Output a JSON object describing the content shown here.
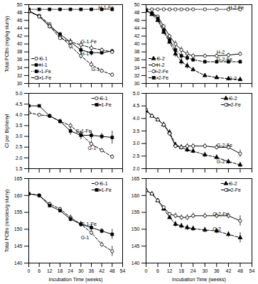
{
  "chart_data": [
    {
      "type": "line",
      "ylabel": "Total PCBs (mg/kg slurry)",
      "xlim": [
        0,
        54
      ],
      "xticks": [
        0,
        6,
        12,
        18,
        24,
        30,
        36,
        42,
        48,
        54
      ],
      "ylim": [
        30,
        50
      ],
      "yticks": [
        30,
        32,
        34,
        36,
        38,
        40,
        42,
        44,
        46,
        48,
        50
      ],
      "tick_labels": "y",
      "legend": "lower left",
      "x": [
        0,
        6,
        12,
        18,
        24,
        30,
        36,
        42,
        48
      ],
      "series": [
        {
          "name": "G-1",
          "values": [
            48.2,
            47.2,
            45.0,
            42.0,
            39.5,
            37.0,
            34.8,
            33.2,
            32.2
          ],
          "yerr": [
            0.3,
            0.3,
            0.5,
            0.5,
            0.8,
            0.8,
            0.8,
            0.5,
            0.5
          ],
          "marker": "open-circle",
          "line_style": "dashed"
        },
        {
          "name": "H-1",
          "values": [
            48.5,
            47.0,
            44.5,
            42.5,
            40.5,
            38.5,
            37.8,
            37.8,
            38.2
          ],
          "yerr": [
            0.3,
            0.3,
            0.5,
            0.5,
            0.8,
            0.8,
            0.8,
            0.5,
            0.5
          ],
          "marker": "filled-square",
          "line_style": "solid"
        },
        {
          "name": "H-1-Fe",
          "values": [
            48.8,
            48.8,
            48.8,
            48.8,
            48.8,
            48.8,
            48.8,
            48.8,
            48.8
          ],
          "yerr": [
            0.15,
            0.15,
            0.15,
            0.15,
            0.15,
            0.15,
            0.15,
            0.15,
            0.15
          ],
          "marker": "filled-square",
          "line_style": "dotted"
        },
        {
          "name": "G-1-Fe",
          "values": [
            48.3,
            47.0,
            44.5,
            41.5,
            40.5,
            39.8,
            39.0,
            38.5,
            38.0
          ],
          "yerr": [
            0.3,
            0.3,
            0.5,
            0.5,
            0.8,
            0.8,
            0.8,
            0.5,
            0.5
          ],
          "marker": "open-circle",
          "line_style": "dashed"
        }
      ],
      "annotations": [
        {
          "text": "H-1-Fe",
          "x": 40,
          "y": 49.2
        },
        {
          "text": "G-1-Fe",
          "x": 30,
          "y": 40.5
        },
        {
          "text": "H-1",
          "x": 30,
          "y": 37.5
        },
        {
          "text": "G-1",
          "x": 36,
          "y": 33.5
        }
      ]
    },
    {
      "type": "line",
      "xlim": [
        0,
        54
      ],
      "xticks": [
        0,
        6,
        12,
        18,
        24,
        30,
        36,
        42,
        48,
        54
      ],
      "ylim": [
        30,
        50
      ],
      "yticks": [
        30,
        32,
        34,
        36,
        38,
        40,
        42,
        44,
        46,
        48,
        50
      ],
      "tick_labels": "y",
      "legend": "lower left",
      "x": [
        0,
        3,
        6,
        9,
        12,
        15,
        18,
        21,
        24,
        30,
        36,
        42,
        48
      ],
      "series": [
        {
          "name": "G-2",
          "values": [
            48.5,
            47.5,
            46.0,
            43.0,
            40.5,
            37.5,
            35.5,
            34.5,
            33.5,
            32.0,
            31.5,
            31.2,
            31.0
          ],
          "yerr": [
            0.3,
            0.3,
            0.3,
            0.5,
            0.5,
            0.8,
            0.8,
            0.8,
            0.5,
            0.5,
            0.5,
            0.5,
            0.5
          ],
          "marker": "filled-triangle",
          "line_style": "dashed"
        },
        {
          "name": "H-2",
          "values": [
            48.5,
            47.8,
            47.0,
            44.5,
            42.0,
            40.0,
            38.5,
            37.5,
            37.0,
            37.0,
            37.0,
            37.2,
            37.5
          ],
          "yerr": [
            0.3,
            0.3,
            0.3,
            0.5,
            0.5,
            0.8,
            0.8,
            0.8,
            0.5,
            0.5,
            0.5,
            0.5,
            0.5
          ],
          "marker": "open-circle",
          "line_style": "solid"
        },
        {
          "name": "H-2-Fe",
          "values": [
            48.8,
            48.8,
            48.8,
            48.8,
            48.8,
            48.8,
            48.8,
            48.8,
            48.8,
            48.8,
            48.8,
            48.8,
            48.8
          ],
          "yerr": [
            0.15,
            0.15,
            0.15,
            0.15,
            0.15,
            0.15,
            0.15,
            0.15,
            0.15,
            0.15,
            0.15,
            0.15,
            0.15
          ],
          "marker": "open-circle",
          "line_style": "dotted"
        },
        {
          "name": "G-2-Fe",
          "values": [
            48.5,
            47.8,
            46.5,
            43.5,
            41.0,
            38.5,
            37.0,
            36.5,
            36.0,
            35.5,
            35.5,
            35.5,
            35.5
          ],
          "yerr": [
            0.3,
            0.3,
            0.3,
            0.5,
            0.5,
            0.8,
            0.8,
            0.8,
            0.5,
            0.5,
            0.5,
            0.5,
            0.5
          ],
          "marker": "filled-square",
          "line_style": "dashed"
        }
      ],
      "annotations": [
        {
          "text": "H-2-Fe",
          "x": 42,
          "y": 49.2
        },
        {
          "text": "H-2",
          "x": 36,
          "y": 37.8
        },
        {
          "text": "G-2-Fe",
          "x": 36,
          "y": 36.0
        },
        {
          "text": "G-2",
          "x": 42,
          "y": 31.3
        }
      ]
    },
    {
      "type": "line",
      "ylabel": "Cl per Biphenyl",
      "xlim": [
        0,
        54
      ],
      "xticks": [
        0,
        6,
        12,
        18,
        24,
        30,
        36,
        42,
        48,
        54
      ],
      "ylim": [
        1.5,
        5.0
      ],
      "yticks": [
        1.5,
        {
          "value": 2,
          "label": "2.0"
        },
        2.5,
        {
          "value": 3,
          "label": "3.0"
        },
        3.5,
        {
          "value": 4,
          "label": "4.0"
        },
        4.5,
        {
          "value": 5,
          "label": "5.0"
        }
      ],
      "tick_labels": "y",
      "legend": "upper right",
      "x": [
        0,
        6,
        12,
        18,
        24,
        30,
        36,
        42,
        48
      ],
      "series": [
        {
          "name": "G-1",
          "values": [
            4.1,
            4.0,
            3.95,
            3.7,
            3.5,
            3.1,
            2.65,
            2.35,
            2.05
          ],
          "yerr": [
            0.05,
            0.08,
            0.05,
            0.1,
            0.1,
            0.15,
            0.15,
            0.1,
            0.1
          ],
          "marker": "open-circle",
          "line_style": "dashed"
        },
        {
          "name": "G-1-Fe",
          "values": [
            4.42,
            4.42,
            3.95,
            3.7,
            3.25,
            3.05,
            3.05,
            3.0,
            2.95
          ],
          "yerr": [
            0.05,
            0.05,
            0.1,
            0.1,
            0.2,
            0.2,
            0.2,
            0.15,
            0.3
          ],
          "marker": "filled-square",
          "line_style": "solid"
        }
      ],
      "annotations": [
        {
          "text": "G-1-Fe",
          "x": 27,
          "y": 3.25
        },
        {
          "text": "G-1",
          "x": 34,
          "y": 2.45
        }
      ]
    },
    {
      "type": "line",
      "xlim": [
        0,
        54
      ],
      "xticks": [
        0,
        6,
        12,
        18,
        24,
        30,
        36,
        42,
        48,
        54
      ],
      "ylim": [
        2.0,
        5.0
      ],
      "yticks": [
        {
          "value": 2,
          "label": "2.0"
        },
        2.5,
        {
          "value": 3,
          "label": "3.0"
        },
        3.5,
        {
          "value": 4,
          "label": "4.0"
        },
        4.5,
        {
          "value": 5,
          "label": "5.0"
        }
      ],
      "tick_labels": "y",
      "legend": "upper right",
      "x": [
        0,
        3,
        6,
        9,
        12,
        15,
        18,
        21,
        24,
        30,
        36,
        42,
        48
      ],
      "series": [
        {
          "name": "G-2",
          "values": [
            4.3,
            4.1,
            3.95,
            3.75,
            3.45,
            2.95,
            2.85,
            2.75,
            2.7,
            2.55,
            2.45,
            2.28,
            2.15
          ],
          "yerr": [
            0.05,
            0.05,
            0.05,
            0.1,
            0.1,
            0.1,
            0.1,
            0.1,
            0.1,
            0.1,
            0.1,
            0.1,
            0.1
          ],
          "marker": "filled-triangle",
          "line_style": "dashed"
        },
        {
          "name": "G-2-Fe",
          "values": [
            4.35,
            4.1,
            3.95,
            3.75,
            3.4,
            2.9,
            2.85,
            2.9,
            2.9,
            2.9,
            2.85,
            2.85,
            2.6
          ],
          "yerr": [
            0.05,
            0.05,
            0.05,
            0.1,
            0.1,
            0.1,
            0.1,
            0.1,
            0.1,
            0.1,
            0.1,
            0.1,
            0.15
          ],
          "marker": "open-circle",
          "line_style": "solid"
        }
      ],
      "annotations": [
        {
          "text": "G-2-Fe",
          "x": 36,
          "y": 2.92
        },
        {
          "text": "G-2",
          "x": 36,
          "y": 2.28
        }
      ]
    },
    {
      "type": "line",
      "ylabel": "Total PCBs (nmoles/g slurry)",
      "xlabel": "Incubation Time (weeks)",
      "xlim": [
        0,
        54
      ],
      "xticks": [
        0,
        6,
        12,
        18,
        24,
        30,
        36,
        42,
        48,
        54
      ],
      "ylim": [
        140,
        165
      ],
      "yticks": [
        140,
        145,
        150,
        155,
        160,
        165
      ],
      "legend": "upper right",
      "x": [
        0,
        6,
        12,
        18,
        24,
        30,
        36,
        42,
        48
      ],
      "series": [
        {
          "name": "G-1",
          "values": [
            160.5,
            160.0,
            157.5,
            156.0,
            153.5,
            151.5,
            149.0,
            145.5,
            143.5
          ],
          "yerr": [
            0.5,
            0.5,
            0.5,
            0.5,
            0.8,
            0.8,
            0.8,
            0.8,
            1.5
          ],
          "marker": "open-circle",
          "line_style": "dashed"
        },
        {
          "name": "G-1-Fe",
          "values": [
            160.5,
            160.0,
            157.0,
            155.5,
            153.0,
            151.5,
            150.5,
            149.5,
            148.5
          ],
          "yerr": [
            0.5,
            0.5,
            0.5,
            0.5,
            0.8,
            0.8,
            0.8,
            0.8,
            1.5
          ],
          "marker": "filled-square",
          "line_style": "solid"
        }
      ],
      "annotations": [
        {
          "text": "G-1-Fe",
          "x": 30,
          "y": 151.5
        },
        {
          "text": "G-1",
          "x": 30,
          "y": 147.5
        }
      ]
    },
    {
      "type": "line",
      "xlabel": "Incubation Time (weeks)",
      "xlim": [
        0,
        54
      ],
      "xticks": [
        0,
        6,
        12,
        18,
        24,
        30,
        36,
        42,
        48,
        54
      ],
      "ylim": [
        140,
        165
      ],
      "yticks": [
        140,
        145,
        150,
        155,
        160,
        165
      ],
      "legend": "upper right",
      "x": [
        0,
        3,
        6,
        9,
        12,
        15,
        18,
        21,
        24,
        30,
        36,
        42,
        48
      ],
      "series": [
        {
          "name": "G-2",
          "values": [
            161.5,
            160.5,
            158.5,
            156.0,
            153.5,
            151.5,
            151.0,
            150.5,
            150.2,
            149.8,
            149.5,
            148.5,
            147.5
          ],
          "yerr": [
            0.5,
            0.5,
            0.5,
            0.5,
            0.5,
            0.8,
            0.8,
            0.8,
            0.8,
            0.8,
            0.8,
            0.8,
            1.5
          ],
          "marker": "filled-triangle",
          "line_style": "dashed"
        },
        {
          "name": "G-2-Fe",
          "values": [
            161.5,
            160.5,
            158.5,
            156.5,
            154.5,
            154.0,
            153.5,
            153.5,
            154.0,
            154.0,
            154.0,
            154.0,
            152.5
          ],
          "yerr": [
            0.5,
            0.5,
            0.5,
            0.5,
            0.5,
            0.8,
            0.8,
            0.8,
            0.8,
            0.8,
            0.8,
            0.8,
            1.5
          ],
          "marker": "open-circle",
          "line_style": "solid"
        }
      ],
      "annotations": [
        {
          "text": "G-2-Fe",
          "x": 34,
          "y": 154.5
        },
        {
          "text": "G-2",
          "x": 34,
          "y": 150.0
        }
      ]
    }
  ]
}
